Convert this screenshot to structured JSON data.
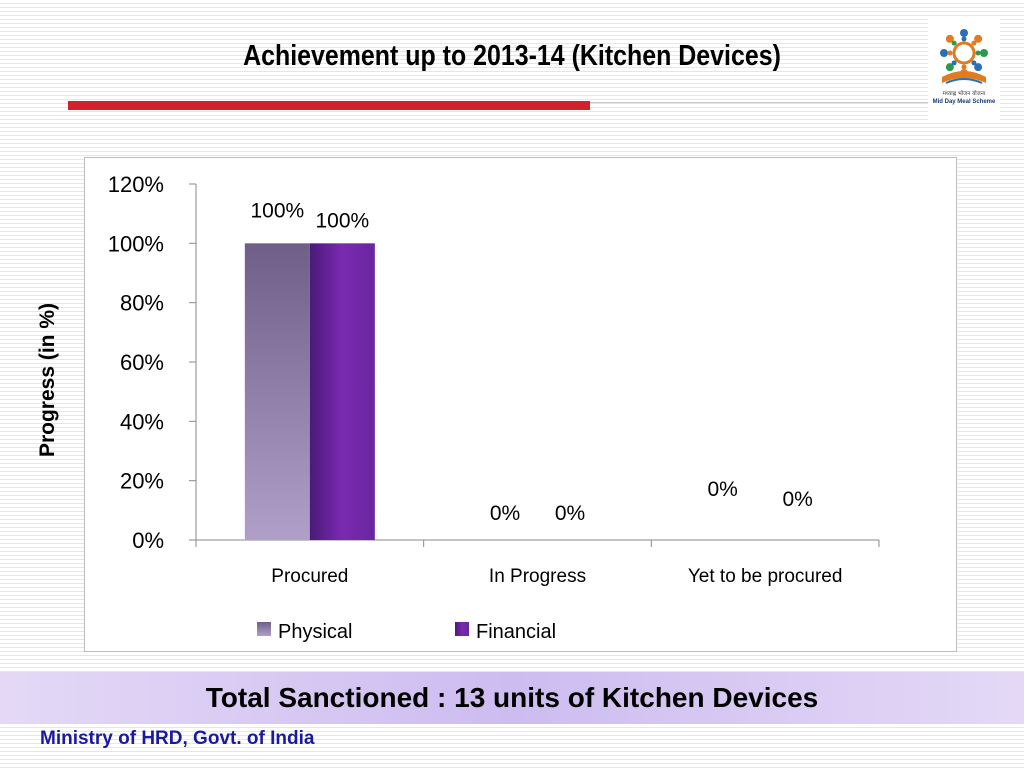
{
  "slide": {
    "title": "Achievement up to 2013-14  (Kitchen Devices)",
    "footer": "Total Sanctioned : 13 units of Kitchen Devices",
    "ministry": "Ministry of HRD, Govt. of India",
    "logo": {
      "icon": "mid-day-meal-scheme-logo",
      "hindi_text": "मध्याह्न भोजन योजना",
      "english_text": "Mid Day Meal Scheme"
    },
    "colors": {
      "title_rule": "#d3212b",
      "footer_band": "#cdbcf0",
      "ministry_text": "#1a1aa0"
    }
  },
  "chart_data": {
    "type": "bar",
    "title": "",
    "categories": [
      "Procured",
      "In Progress",
      "Yet to be procured"
    ],
    "series": [
      {
        "name": "Physical",
        "values": [
          100,
          0,
          0
        ],
        "color": "#9a88b3"
      },
      {
        "name": "Financial",
        "values": [
          100,
          0,
          0
        ],
        "color": "#6e2aa0"
      }
    ],
    "data_labels": [
      [
        "100%",
        "0%",
        "0%"
      ],
      [
        "100%",
        "0%",
        "0%"
      ]
    ],
    "ylabel": "Progress (in %)",
    "xlabel": "",
    "ylim": [
      0,
      120
    ],
    "yticks": [
      0,
      20,
      40,
      60,
      80,
      100,
      120
    ],
    "ytick_labels": [
      "0%",
      "20%",
      "40%",
      "60%",
      "80%",
      "100%",
      "120%"
    ],
    "grid": false,
    "legend_position": "bottom"
  }
}
